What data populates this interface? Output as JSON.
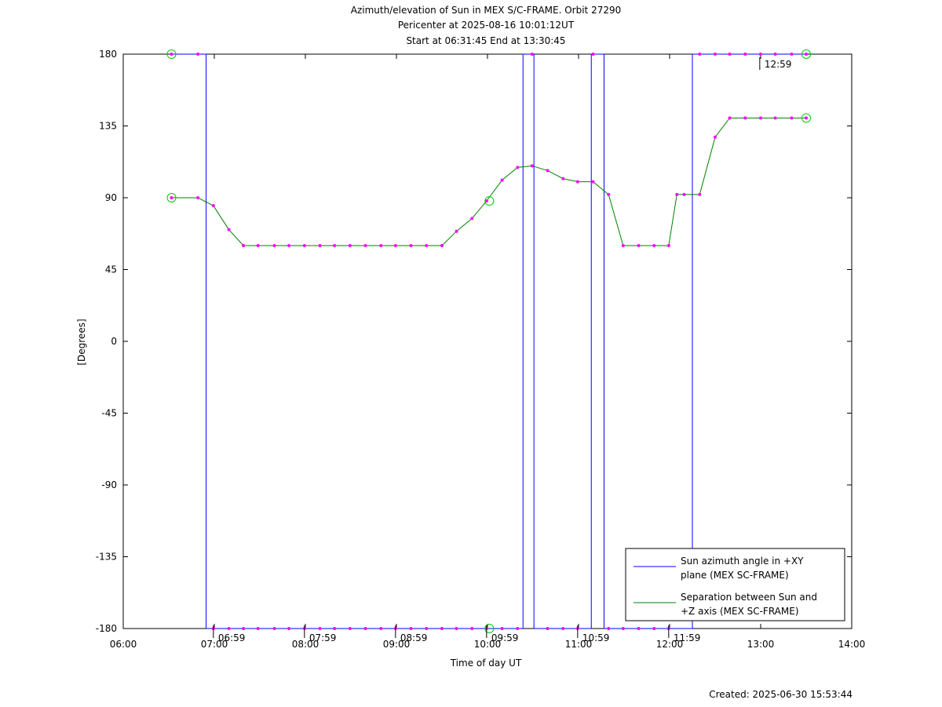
{
  "chart_data": {
    "type": "line",
    "title": [
      "Azimuth/elevation of Sun in MEX S/C-FRAME.  Orbit 27290",
      "Pericenter at 2025-08-16 10:01:12UT",
      "Start at 06:31:45 End at 13:30:45"
    ],
    "xlabel": "Time of day UT",
    "ylabel": "[Degrees]",
    "footer": "Created: 2025-06-30 15:53:44",
    "xlim": [
      6,
      14
    ],
    "xticks": [
      {
        "value": 6,
        "label": "06:00"
      },
      {
        "value": 7,
        "label": "07:00"
      },
      {
        "value": 8,
        "label": "08:00"
      },
      {
        "value": 9,
        "label": "09:00"
      },
      {
        "value": 10,
        "label": "10:00"
      },
      {
        "value": 11,
        "label": "11:00"
      },
      {
        "value": 12,
        "label": "12:00"
      },
      {
        "value": 13,
        "label": "13:00"
      },
      {
        "value": 14,
        "label": "14:00"
      }
    ],
    "ylim": [
      -180,
      180
    ],
    "yticks": [
      -180,
      -135,
      -90,
      -45,
      0,
      45,
      90,
      135,
      180
    ],
    "marker_color": "#ff00ff",
    "series": [
      {
        "name": "Sun azimuth angle in +XY plane (MEX SC-FRAME)",
        "color": "#0000ff",
        "x": [
          6.53,
          6.82,
          6.91,
          6.91,
          6.99,
          7.16,
          7.32,
          7.48,
          7.66,
          7.82,
          7.99,
          8.16,
          8.32,
          8.49,
          8.66,
          8.83,
          8.99,
          9.16,
          9.33,
          9.5,
          9.66,
          9.83,
          9.99,
          10.16,
          10.33,
          10.39,
          10.39,
          10.49,
          10.51,
          10.51,
          10.66,
          10.83,
          10.99,
          11.14,
          11.14,
          11.16,
          11.28,
          11.28,
          11.33,
          11.49,
          11.66,
          11.83,
          11.99,
          12.25,
          12.25,
          12.33,
          12.5,
          12.66,
          12.83,
          13.0,
          13.16,
          13.34,
          13.5
        ],
        "values": [
          180,
          180,
          180,
          -180,
          -180,
          -180,
          -180,
          -180,
          -180,
          -180,
          -180,
          -180,
          -180,
          -180,
          -180,
          -180,
          -180,
          -180,
          -180,
          -180,
          -180,
          -180,
          -180,
          -180,
          -180,
          -180,
          180,
          180,
          180,
          -180,
          -180,
          -180,
          -180,
          -180,
          180,
          180,
          180,
          -180,
          -180,
          -180,
          -180,
          -180,
          -180,
          -180,
          180,
          180,
          180,
          180,
          180,
          180,
          180,
          180,
          180
        ]
      },
      {
        "name": "Separation between Sun and +Z axis (MEX SC-FRAME)",
        "color": "#008000",
        "x": [
          6.53,
          6.82,
          6.99,
          7.16,
          7.32,
          7.48,
          7.66,
          7.82,
          7.99,
          8.16,
          8.32,
          8.49,
          8.66,
          8.83,
          8.99,
          9.16,
          9.33,
          9.5,
          9.66,
          9.83,
          9.99,
          10.16,
          10.33,
          10.49,
          10.66,
          10.83,
          10.99,
          11.16,
          11.33,
          11.49,
          11.66,
          11.83,
          11.99,
          12.08,
          12.16,
          12.33,
          12.5,
          12.66,
          12.83,
          13.0,
          13.16,
          13.34,
          13.5
        ],
        "values": [
          90,
          90,
          85,
          70,
          60,
          60,
          60,
          60,
          60,
          60,
          60,
          60,
          60,
          60,
          60,
          60,
          60,
          60,
          69,
          77,
          88,
          101,
          109,
          110,
          107,
          102,
          100,
          100,
          92,
          60,
          60,
          60,
          60,
          92,
          92,
          92,
          128,
          140,
          140,
          140,
          140,
          140,
          140
        ]
      }
    ],
    "highlight_points": {
      "color": "#00cc00",
      "x": [
        6.53,
        6.53,
        10.02,
        10.02,
        13.5,
        13.5
      ],
      "y": [
        180,
        90,
        88,
        -180,
        180,
        140
      ]
    },
    "annotations": [
      {
        "x": 6.99,
        "y": -180,
        "label": "06:59"
      },
      {
        "x": 7.99,
        "y": -180,
        "label": "07:59"
      },
      {
        "x": 8.99,
        "y": -180,
        "label": "08:59"
      },
      {
        "x": 9.99,
        "y": -180,
        "label": "09:59"
      },
      {
        "x": 10.99,
        "y": -180,
        "label": "10:59"
      },
      {
        "x": 11.99,
        "y": -180,
        "label": "11:59"
      },
      {
        "x": 12.99,
        "y": 180,
        "label": "12:59"
      }
    ],
    "legend": "lower right"
  }
}
